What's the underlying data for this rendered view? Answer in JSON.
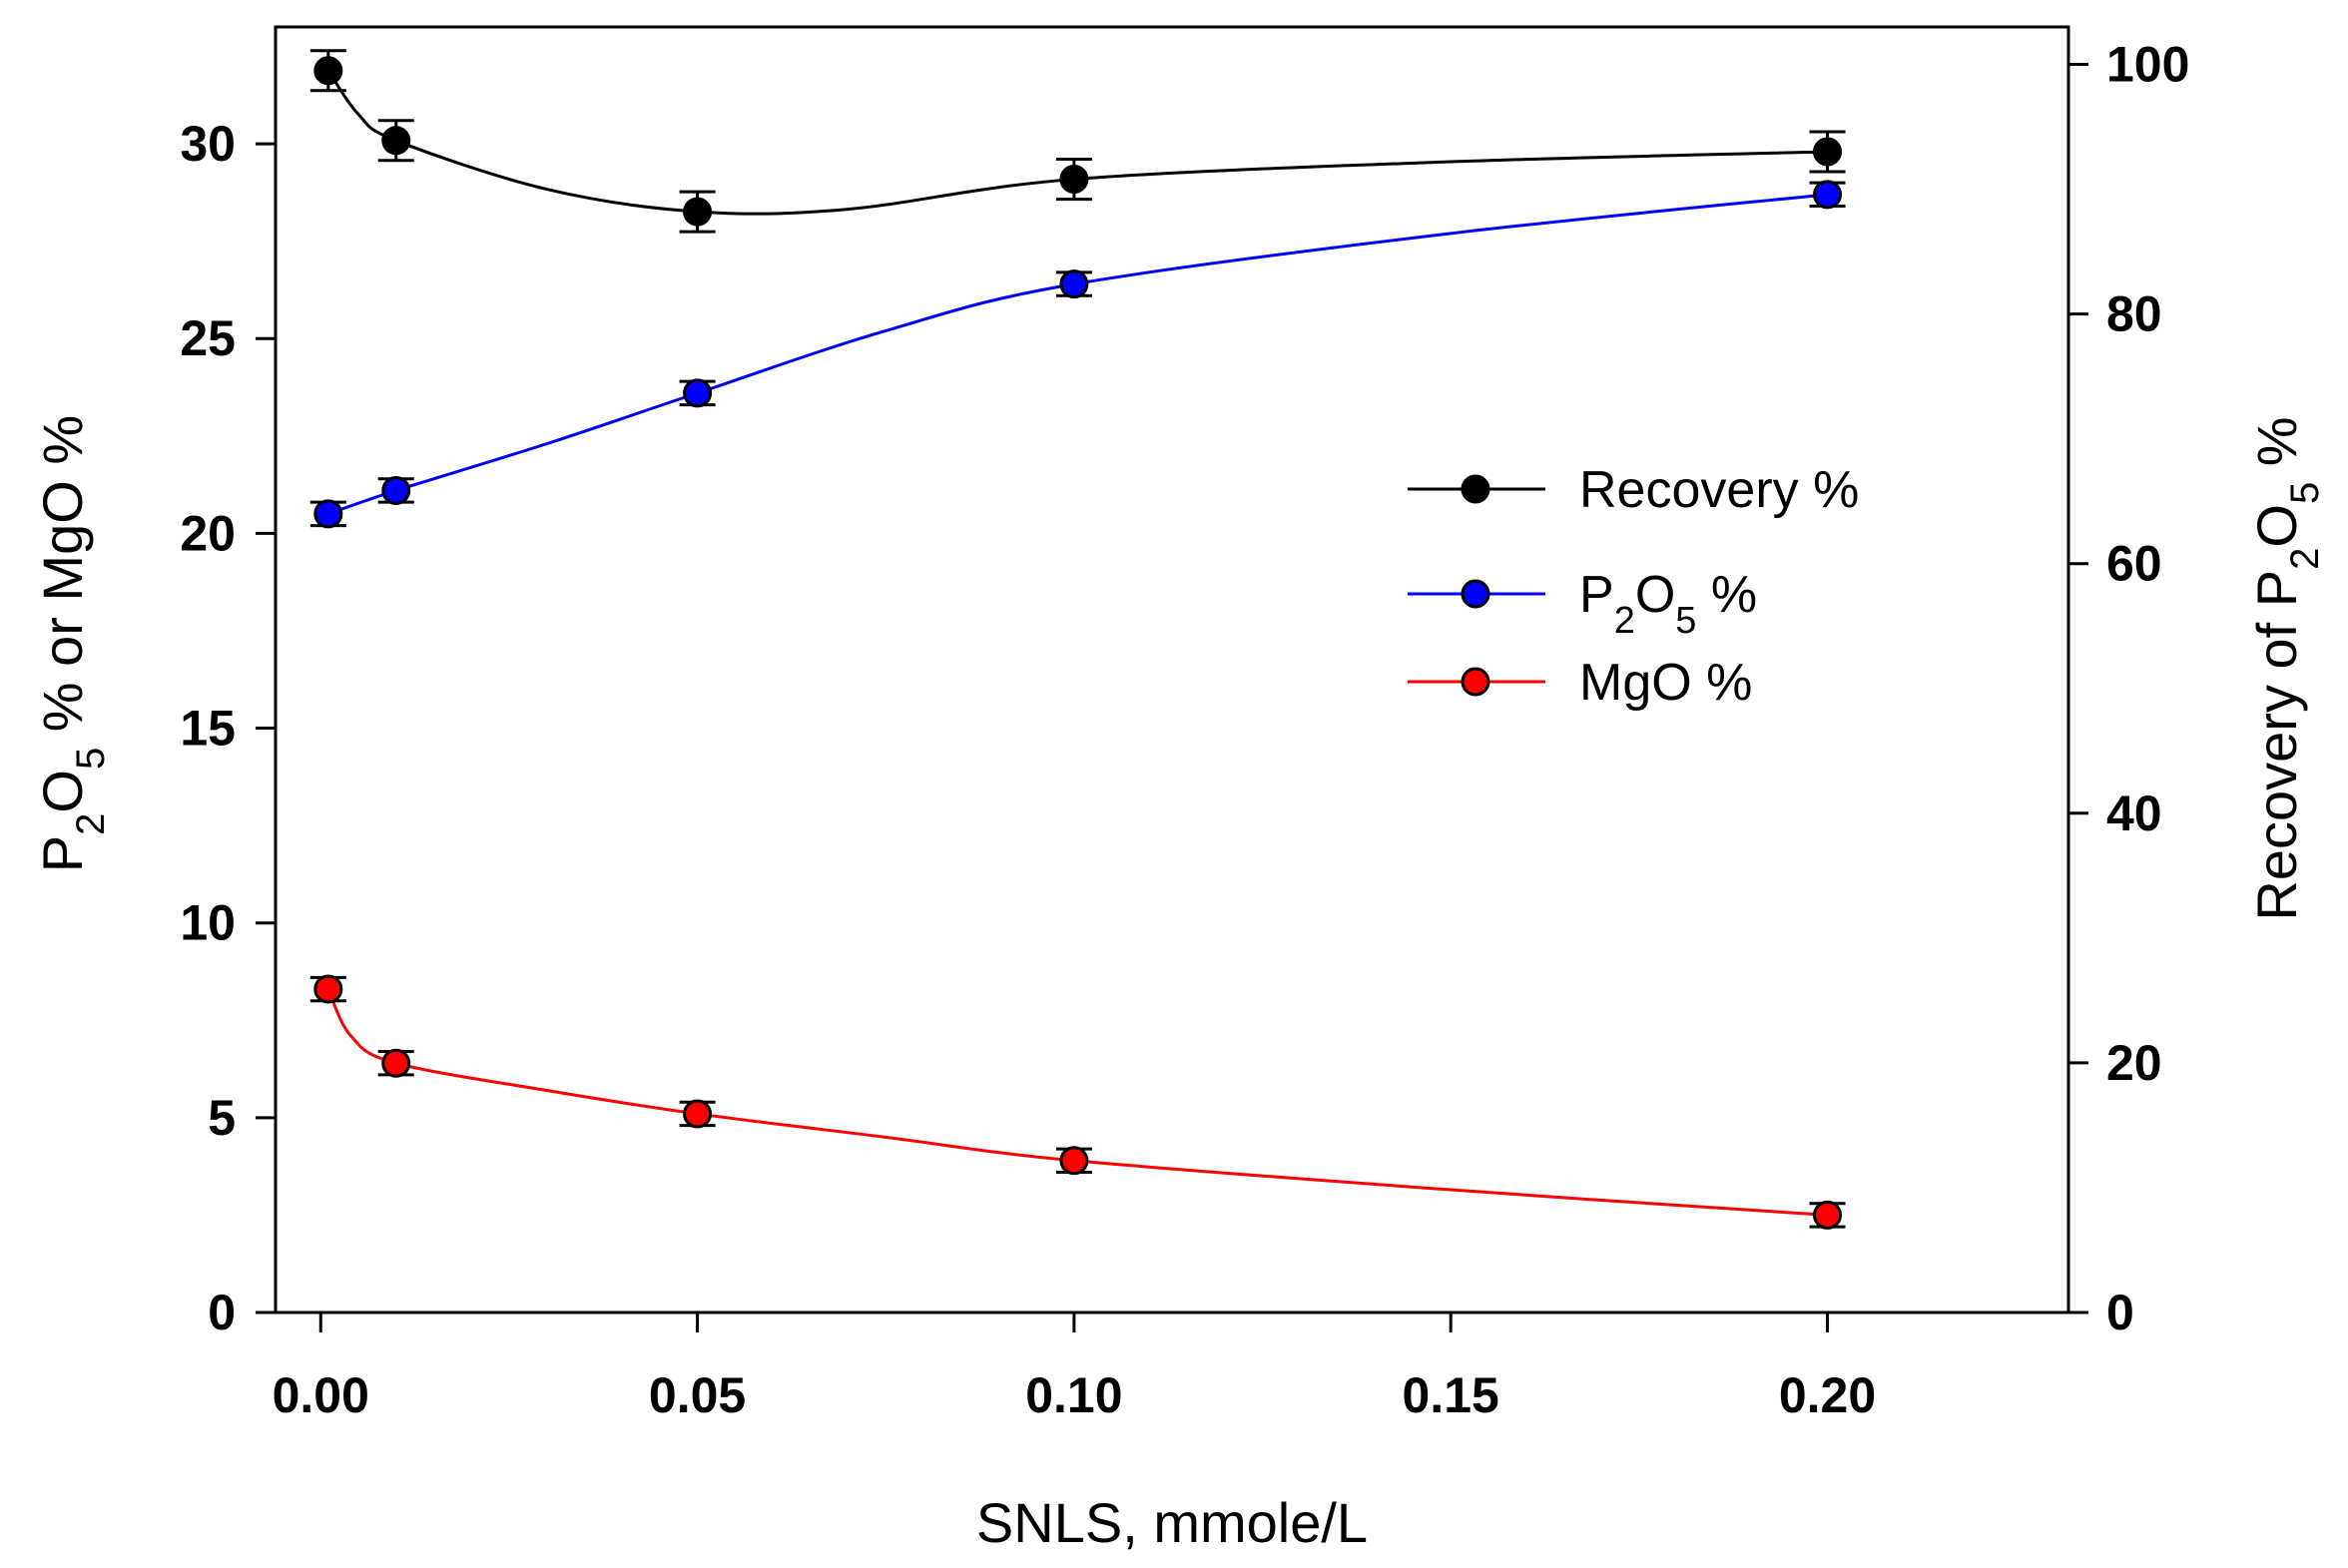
{
  "chart_data": {
    "type": "line",
    "title": "",
    "xlabel": "SNLS, mmole/L",
    "ylabel_left": {
      "main": "P",
      "sub1": "2",
      "mid": "O",
      "sub2": "5",
      "rest": " % or MgO %"
    },
    "ylabel_right": {
      "main": "Recovery of P",
      "sub1": "2",
      "mid": "O",
      "sub2": "5",
      "rest": " %"
    },
    "xlim": [
      -0.006,
      0.232
    ],
    "ylim_left": [
      0,
      33
    ],
    "ylim_right": [
      0,
      103
    ],
    "x_ticks": [
      0.0,
      0.05,
      0.1,
      0.15,
      0.2
    ],
    "x_tick_labels": [
      "0.00",
      "0.05",
      "0.10",
      "0.15",
      "0.20"
    ],
    "y_left_ticks": [
      0,
      5,
      10,
      15,
      20,
      25,
      30
    ],
    "y_left_tick_labels": [
      "0",
      "5",
      "10",
      "15",
      "20",
      "25",
      "30"
    ],
    "y_right_ticks": [
      0,
      20,
      40,
      60,
      80,
      100
    ],
    "y_right_tick_labels": [
      "0",
      "20",
      "40",
      "60",
      "80",
      "100"
    ],
    "legend_position": "center-right",
    "series": [
      {
        "name": "Recovery %",
        "legend_label": {
          "main": "Recovery %"
        },
        "color": "#000000",
        "axis": "right",
        "x": [
          0.001,
          0.01,
          0.05,
          0.1,
          0.2
        ],
        "y": [
          99.5,
          93.9,
          88.2,
          90.8,
          93.0
        ],
        "err": [
          1.6,
          1.6,
          1.6,
          1.6,
          1.6
        ],
        "curve": [
          [
            0.001,
            99.5
          ],
          [
            0.005,
            96.0
          ],
          [
            0.01,
            93.9
          ],
          [
            0.03,
            90.0
          ],
          [
            0.05,
            88.2
          ],
          [
            0.07,
            88.4
          ],
          [
            0.1,
            90.8
          ],
          [
            0.15,
            92.2
          ],
          [
            0.2,
            93.0
          ]
        ]
      },
      {
        "name": "P2O5 %",
        "legend_label": {
          "main": "P",
          "sub1": "2",
          "mid": "O",
          "sub2": "5",
          "rest": " %"
        },
        "color": "#0000ff",
        "axis": "left",
        "x": [
          0.001,
          0.01,
          0.05,
          0.1,
          0.2
        ],
        "y": [
          20.5,
          21.1,
          23.6,
          26.4,
          28.7
        ],
        "err": [
          0.3,
          0.3,
          0.3,
          0.3,
          0.3
        ],
        "curve": [
          [
            0.001,
            20.5
          ],
          [
            0.01,
            21.1
          ],
          [
            0.03,
            22.3
          ],
          [
            0.05,
            23.6
          ],
          [
            0.075,
            25.2
          ],
          [
            0.1,
            26.4
          ],
          [
            0.15,
            27.7
          ],
          [
            0.2,
            28.7
          ]
        ]
      },
      {
        "name": "MgO %",
        "legend_label": {
          "main": "MgO %"
        },
        "color": "#ff0000",
        "axis": "left",
        "x": [
          0.001,
          0.01,
          0.05,
          0.1,
          0.2
        ],
        "y": [
          8.3,
          6.4,
          5.1,
          3.9,
          2.5
        ],
        "err": [
          0.3,
          0.3,
          0.3,
          0.3,
          0.3
        ],
        "curve": [
          [
            0.001,
            8.3
          ],
          [
            0.004,
            7.1
          ],
          [
            0.01,
            6.4
          ],
          [
            0.03,
            5.7
          ],
          [
            0.05,
            5.1
          ],
          [
            0.075,
            4.5
          ],
          [
            0.1,
            3.9
          ],
          [
            0.15,
            3.15
          ],
          [
            0.2,
            2.5
          ]
        ]
      }
    ]
  }
}
